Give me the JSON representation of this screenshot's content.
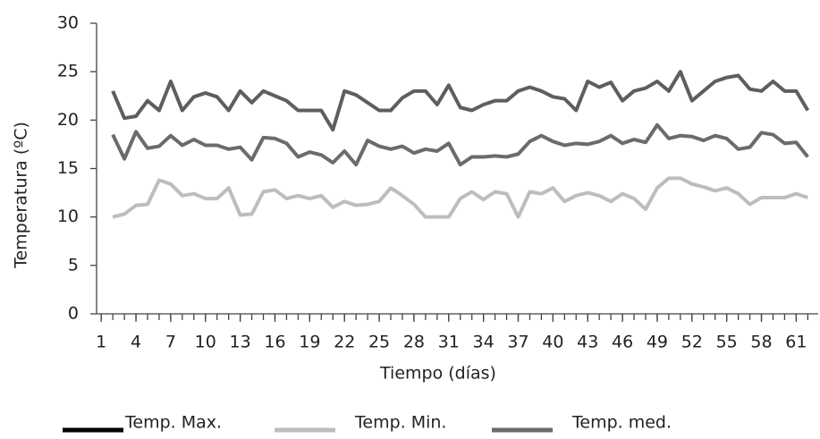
{
  "chart_data": {
    "type": "line",
    "x_label": "Tiempo (días)",
    "y_label": "Temperatura (ºC)",
    "x": [
      2,
      3,
      4,
      5,
      6,
      7,
      8,
      9,
      10,
      11,
      12,
      13,
      14,
      15,
      16,
      17,
      18,
      19,
      20,
      21,
      22,
      23,
      24,
      25,
      26,
      27,
      28,
      29,
      30,
      31,
      32,
      33,
      34,
      35,
      36,
      37,
      38,
      39,
      40,
      41,
      42,
      43,
      44,
      45,
      46,
      47,
      48,
      49,
      50,
      51,
      52,
      53,
      54,
      55,
      56,
      57,
      58,
      59,
      60,
      61,
      62
    ],
    "series": [
      {
        "name": "Temp. Max.",
        "color": "#5e5e5e",
        "values": [
          23,
          20.2,
          20.4,
          22,
          21,
          24,
          21,
          22.4,
          22.8,
          22.4,
          21,
          23,
          21.8,
          23,
          22.5,
          22,
          21,
          21,
          21,
          19,
          23,
          22.6,
          21.8,
          21,
          21,
          22.3,
          23,
          23,
          21.6,
          23.6,
          21.3,
          21,
          21.6,
          22,
          22,
          23,
          23.4,
          23,
          22.4,
          22.2,
          21,
          24,
          23.4,
          23.9,
          22,
          23,
          23.3,
          24,
          23,
          25,
          22,
          23,
          24,
          24.4,
          24.6,
          23.2,
          23,
          24,
          23,
          23,
          21
        ]
      },
      {
        "name": "Temp. Min.",
        "color": "#bdbdbd",
        "values": [
          10,
          10.3,
          11.2,
          11.3,
          13.8,
          13.4,
          12.2,
          12.4,
          11.9,
          11.9,
          13,
          10.2,
          10.3,
          12.6,
          12.8,
          11.9,
          12.2,
          11.9,
          12.2,
          11,
          11.6,
          11.2,
          11.3,
          11.6,
          13,
          12.2,
          11.3,
          10,
          10,
          10,
          11.9,
          12.6,
          11.8,
          12.6,
          12.4,
          10,
          12.6,
          12.4,
          13,
          11.6,
          12.2,
          12.5,
          12.2,
          11.6,
          12.4,
          11.9,
          10.8,
          13,
          14,
          14,
          13.4,
          13.1,
          12.7,
          13,
          12.4,
          11.3,
          12,
          12,
          12,
          12.4,
          12
        ]
      },
      {
        "name": "Temp. med.",
        "color": "#6b6b6b",
        "values": [
          18.5,
          16,
          18.8,
          17.1,
          17.3,
          18.4,
          17.4,
          18,
          17.4,
          17.4,
          17,
          17.2,
          15.9,
          18.2,
          18.1,
          17.6,
          16.2,
          16.7,
          16.4,
          15.6,
          16.8,
          15.4,
          17.9,
          17.3,
          17,
          17.3,
          16.6,
          17,
          16.8,
          17.6,
          15.4,
          16.2,
          16.2,
          16.3,
          16.2,
          16.5,
          17.8,
          18.4,
          17.8,
          17.4,
          17.6,
          17.5,
          17.8,
          18.4,
          17.6,
          18,
          17.7,
          19.5,
          18.1,
          18.4,
          18.3,
          17.9,
          18.4,
          18.1,
          17,
          17.2,
          18.7,
          18.5,
          17.6,
          17.7,
          16.2
        ]
      }
    ],
    "legend_swatch_colors": [
      "#000000",
      "#bdbdbd",
      "#6b6b6b"
    ],
    "xlim": [
      0.6,
      62.9
    ],
    "xticks": [
      1,
      4,
      7,
      10,
      13,
      16,
      19,
      22,
      25,
      28,
      31,
      34,
      37,
      40,
      43,
      46,
      49,
      52,
      55,
      58,
      61
    ],
    "ylim": [
      0,
      30
    ],
    "yticks": [
      0,
      5,
      10,
      15,
      20,
      25,
      30
    ]
  }
}
